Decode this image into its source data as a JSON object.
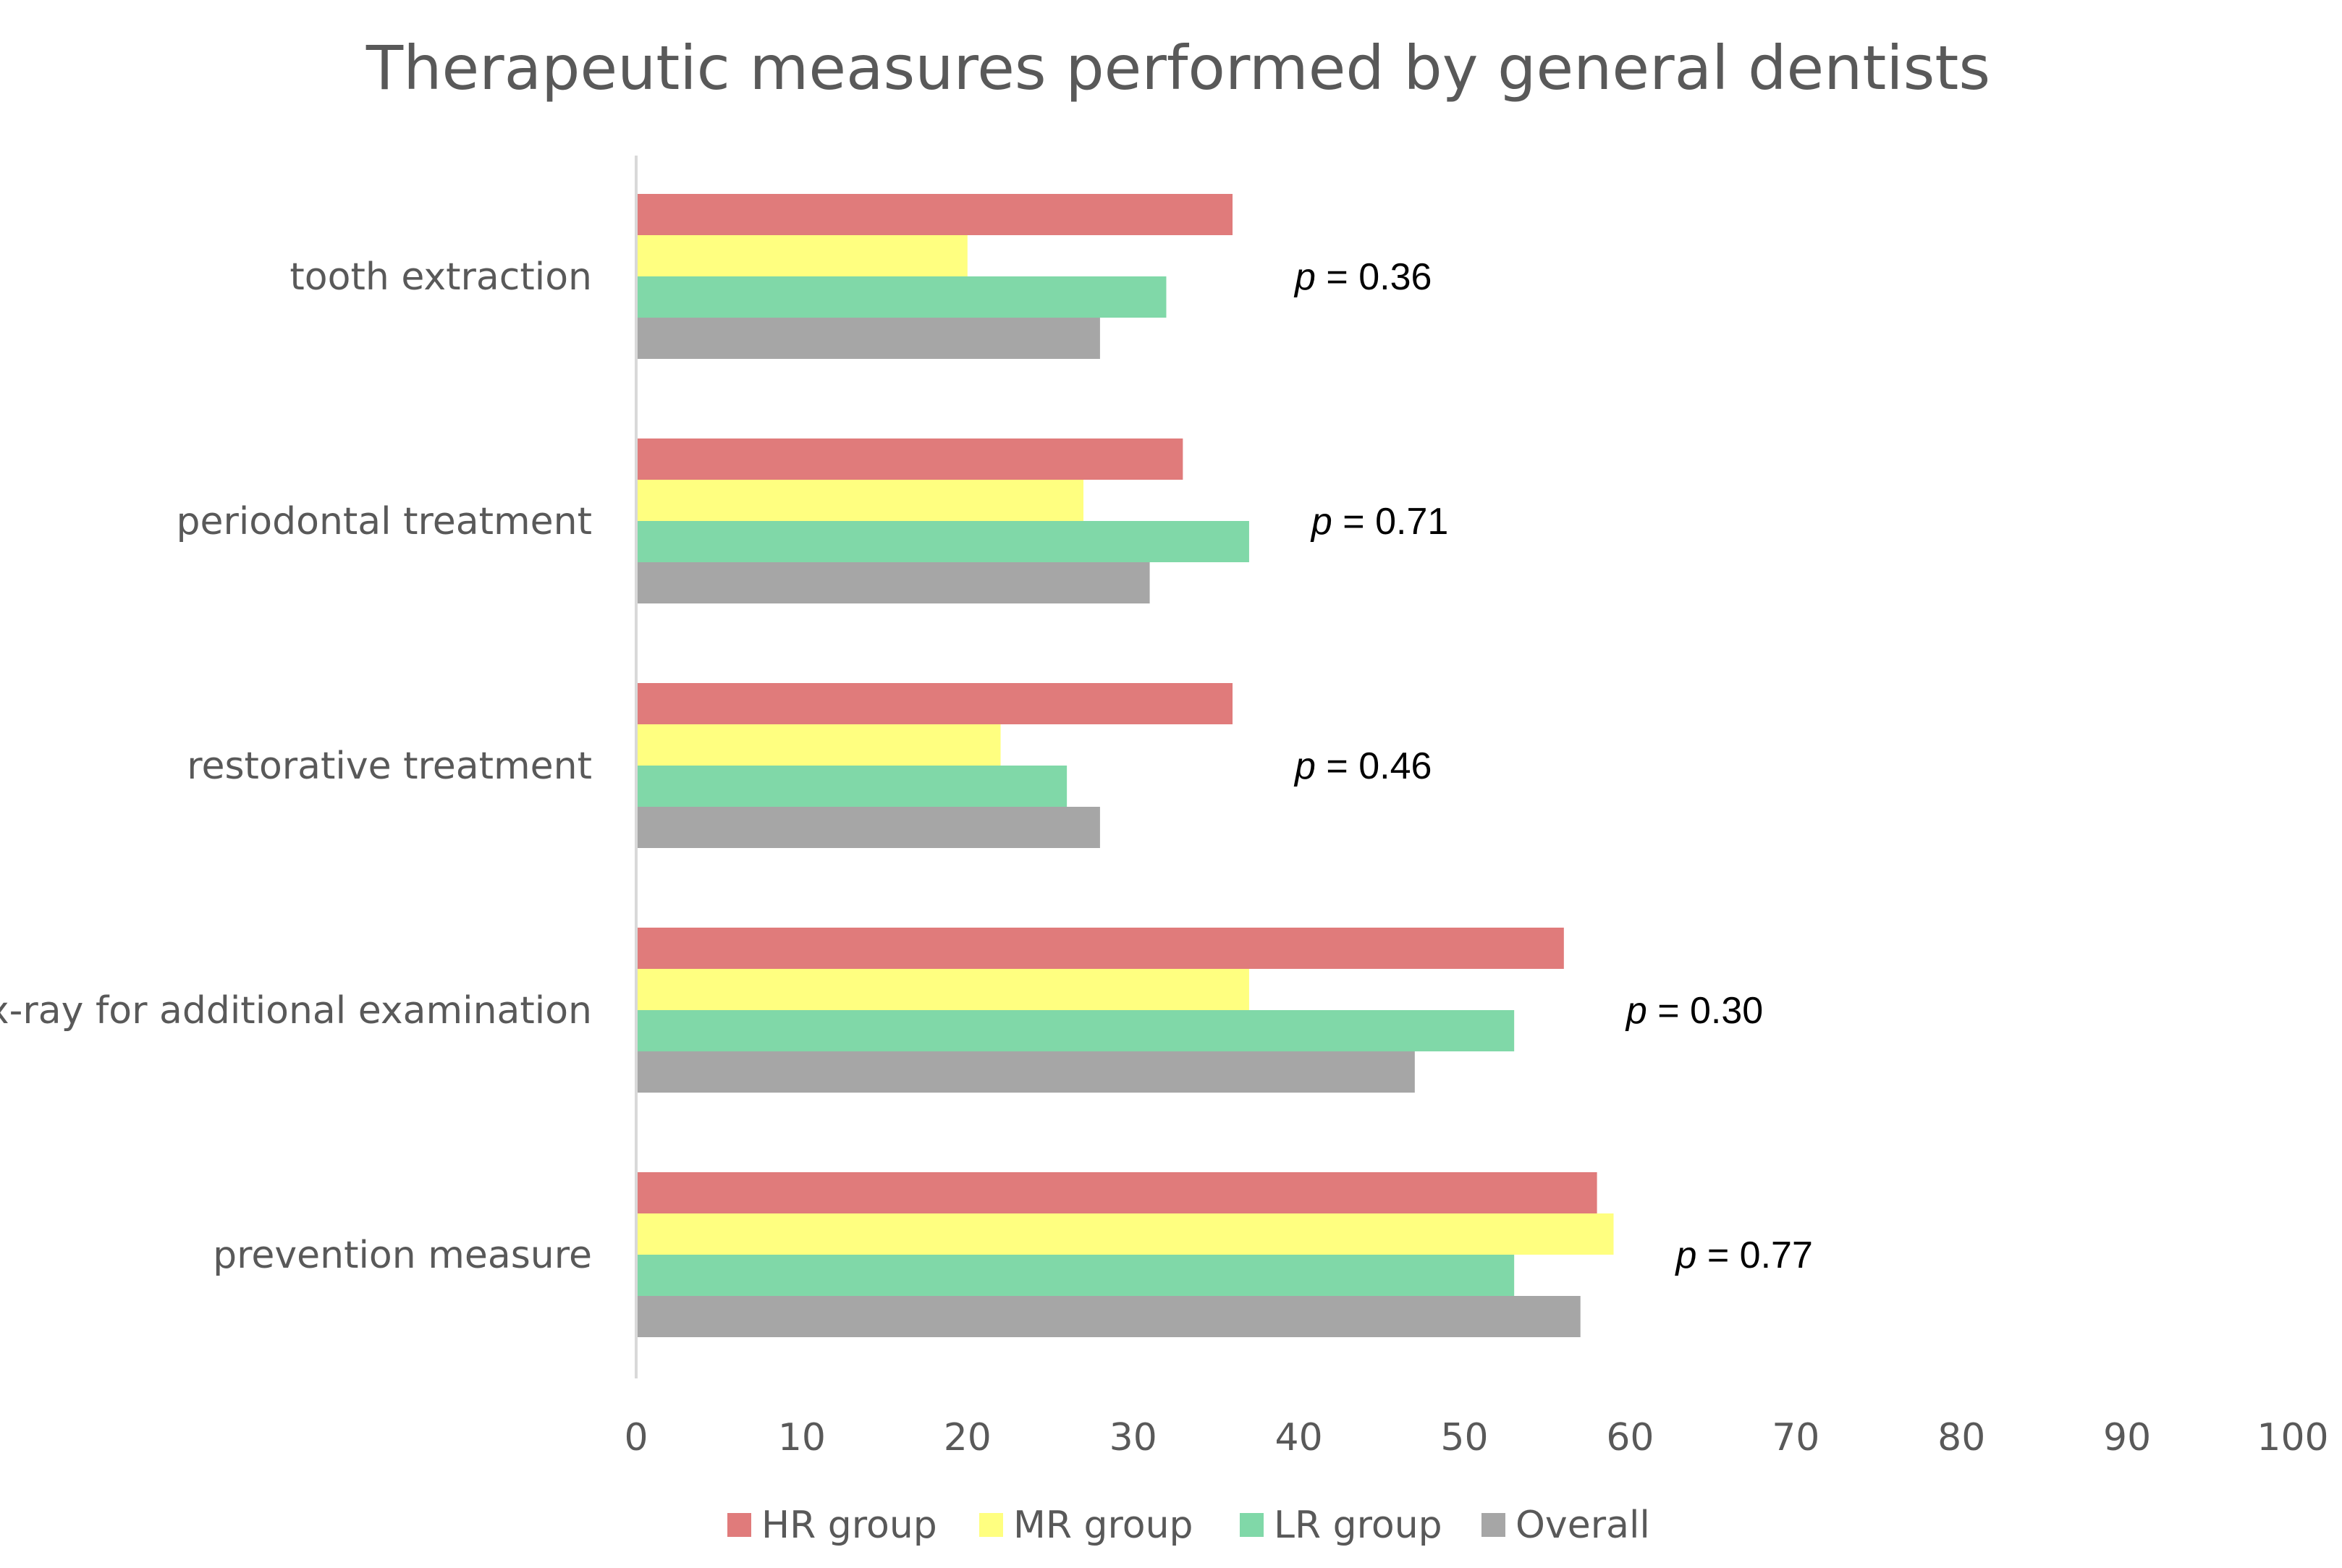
{
  "chart_data": {
    "type": "bar",
    "orientation": "horizontal",
    "title": "Therapeutic measures performed by general dentists",
    "categories": [
      "tooth extraction",
      "periodontal treatment",
      "restorative treatment",
      "x-ray for additional examination",
      "prevention measure"
    ],
    "series": [
      {
        "name": "HR group",
        "color": "#e07b7b",
        "values": [
          36,
          33,
          36,
          56,
          58
        ]
      },
      {
        "name": "MR group",
        "color": "#ffff80",
        "values": [
          20,
          27,
          22,
          37,
          59
        ]
      },
      {
        "name": "LR group",
        "color": "#80d8a8",
        "values": [
          32,
          37,
          26,
          53,
          53
        ]
      },
      {
        "name": "Overall",
        "color": "#a6a6a6",
        "values": [
          28,
          31,
          28,
          47,
          57
        ]
      }
    ],
    "annotations": [
      {
        "category": "tooth extraction",
        "p_symbol": "p",
        "text": " = 0.36"
      },
      {
        "category": "periodontal treatment",
        "p_symbol": "p",
        "text": " = 0.71"
      },
      {
        "category": "restorative treatment",
        "p_symbol": "p",
        "text": " = 0.46"
      },
      {
        "category": "x-ray for additional examination",
        "p_symbol": "p",
        "text": " = 0.30"
      },
      {
        "category": "prevention measure",
        "p_symbol": "p",
        "text": " = 0.77"
      }
    ],
    "xlim": [
      0,
      100
    ],
    "xticks": [
      "0",
      "10",
      "20",
      "30",
      "40",
      "50",
      "60",
      "70",
      "80",
      "90",
      "100"
    ],
    "xlabel": "",
    "ylabel": "",
    "grid": false,
    "legend": "bottom"
  }
}
